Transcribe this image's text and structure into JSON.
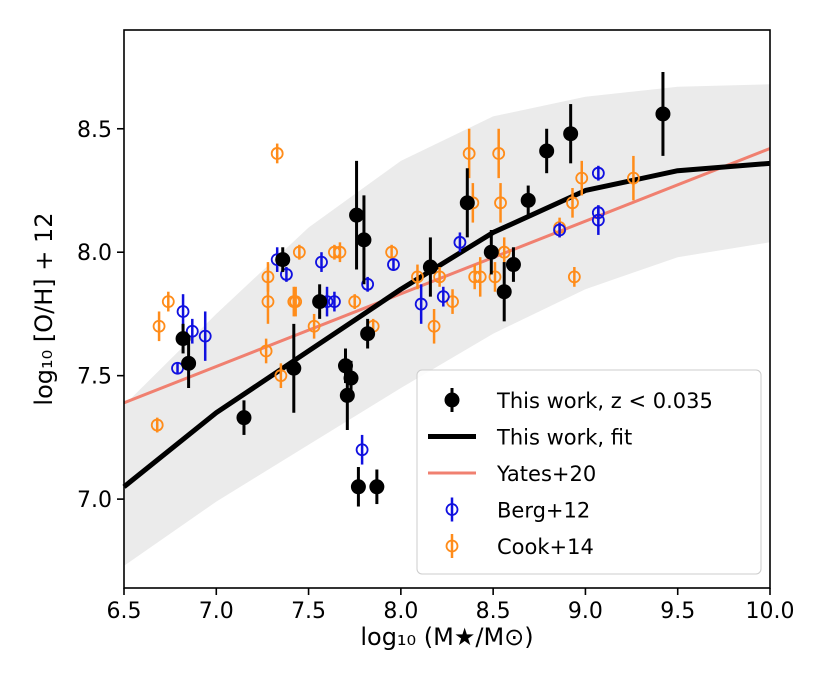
{
  "chart_data": {
    "type": "scatter",
    "title": "",
    "xlabel": "log₁₀ (M★/M⊙)",
    "ylabel": "log₁₀ [O/H] + 12",
    "xlim": [
      6.5,
      10.0
    ],
    "ylim": [
      6.64,
      8.9
    ],
    "xticks": [
      6.5,
      7.0,
      7.5,
      8.0,
      8.5,
      9.0,
      9.5,
      10.0
    ],
    "xtick_labels": [
      "6.5",
      "7.0",
      "7.5",
      "8.0",
      "8.5",
      "9.0",
      "9.5",
      "10.0"
    ],
    "yticks": [
      7.0,
      7.5,
      8.0,
      8.5
    ],
    "ytick_labels": [
      "7.0",
      "7.5",
      "8.0",
      "8.5"
    ],
    "legend_position": "lower-right",
    "colors": {
      "this_work": "#000000",
      "fit": "#000000",
      "yates": "#f08070",
      "berg": "#1010e0",
      "cook": "#ff8c1a",
      "band": "#ebebeb"
    },
    "legend": [
      {
        "key": "this_work",
        "label": "This work, z < 0.035",
        "style": "point-errorbar"
      },
      {
        "key": "fit",
        "label": "This work, fit",
        "style": "line-thick"
      },
      {
        "key": "yates",
        "label": "Yates+20",
        "style": "line"
      },
      {
        "key": "berg",
        "label": "Berg+12",
        "style": "open-errorbar"
      },
      {
        "key": "cook",
        "label": "Cook+14",
        "style": "open-errorbar"
      }
    ],
    "fit_curve": {
      "x": [
        6.5,
        7.0,
        7.5,
        8.0,
        8.5,
        9.0,
        9.5,
        10.0
      ],
      "y": [
        7.05,
        7.35,
        7.6,
        7.85,
        8.08,
        8.25,
        8.33,
        8.36
      ]
    },
    "fit_band": {
      "x": [
        6.5,
        7.0,
        7.5,
        8.0,
        8.5,
        9.0,
        9.5,
        10.0
      ],
      "upper": [
        7.38,
        7.75,
        8.1,
        8.37,
        8.55,
        8.63,
        8.67,
        8.68
      ],
      "lower": [
        6.73,
        6.99,
        7.22,
        7.45,
        7.67,
        7.85,
        7.98,
        8.04
      ]
    },
    "yates_line": {
      "x": [
        6.5,
        10.0
      ],
      "y": [
        7.39,
        8.42
      ]
    },
    "this_work": [
      {
        "x": 6.82,
        "y": 7.65,
        "err": 0.06
      },
      {
        "x": 6.85,
        "y": 7.55,
        "err": 0.1
      },
      {
        "x": 7.15,
        "y": 7.33,
        "err": 0.07
      },
      {
        "x": 7.36,
        "y": 7.97,
        "err": 0.05
      },
      {
        "x": 7.42,
        "y": 7.53,
        "err": 0.18
      },
      {
        "x": 7.56,
        "y": 7.8,
        "err": 0.07
      },
      {
        "x": 7.7,
        "y": 7.54,
        "err": 0.07
      },
      {
        "x": 7.71,
        "y": 7.42,
        "err": 0.14
      },
      {
        "x": 7.73,
        "y": 7.49,
        "err": 0.07
      },
      {
        "x": 7.76,
        "y": 8.15,
        "err": 0.22
      },
      {
        "x": 7.77,
        "y": 7.05,
        "err": 0.08
      },
      {
        "x": 7.8,
        "y": 8.05,
        "err": 0.18
      },
      {
        "x": 7.82,
        "y": 7.67,
        "err": 0.06
      },
      {
        "x": 7.87,
        "y": 7.05,
        "err": 0.07
      },
      {
        "x": 8.16,
        "y": 7.94,
        "err": 0.12
      },
      {
        "x": 8.36,
        "y": 8.2,
        "err": 0.14
      },
      {
        "x": 8.49,
        "y": 8.0,
        "err": 0.09
      },
      {
        "x": 8.56,
        "y": 7.84,
        "err": 0.12
      },
      {
        "x": 8.61,
        "y": 7.95,
        "err": 0.07
      },
      {
        "x": 8.69,
        "y": 8.21,
        "err": 0.06
      },
      {
        "x": 8.79,
        "y": 8.41,
        "err": 0.09
      },
      {
        "x": 8.92,
        "y": 8.48,
        "err": 0.12
      },
      {
        "x": 9.42,
        "y": 8.56,
        "err": 0.17
      }
    ],
    "berg12": [
      {
        "x": 6.79,
        "y": 7.53,
        "err": 0.02
      },
      {
        "x": 6.82,
        "y": 7.76,
        "err": 0.07
      },
      {
        "x": 6.87,
        "y": 7.68,
        "err": 0.05
      },
      {
        "x": 6.94,
        "y": 7.66,
        "err": 0.1
      },
      {
        "x": 7.33,
        "y": 7.97,
        "err": 0.05
      },
      {
        "x": 7.38,
        "y": 7.91,
        "err": 0.03
      },
      {
        "x": 7.57,
        "y": 7.96,
        "err": 0.04
      },
      {
        "x": 7.6,
        "y": 7.8,
        "err": 0.06
      },
      {
        "x": 7.64,
        "y": 7.8,
        "err": 0.04
      },
      {
        "x": 7.79,
        "y": 7.2,
        "err": 0.06
      },
      {
        "x": 7.82,
        "y": 7.87,
        "err": 0.03
      },
      {
        "x": 7.96,
        "y": 7.95,
        "err": 0.02
      },
      {
        "x": 8.11,
        "y": 7.79,
        "err": 0.08
      },
      {
        "x": 8.23,
        "y": 7.82,
        "err": 0.04
      },
      {
        "x": 8.32,
        "y": 8.04,
        "err": 0.04
      },
      {
        "x": 8.86,
        "y": 8.09,
        "err": 0.03
      },
      {
        "x": 9.07,
        "y": 8.13,
        "err": 0.06
      },
      {
        "x": 9.07,
        "y": 8.16,
        "err": 0.03
      },
      {
        "x": 9.07,
        "y": 8.32,
        "err": 0.03
      }
    ],
    "cook14": [
      {
        "x": 6.68,
        "y": 7.3,
        "err": 0.03
      },
      {
        "x": 6.69,
        "y": 7.7,
        "err": 0.06
      },
      {
        "x": 6.74,
        "y": 7.8,
        "err": 0.04
      },
      {
        "x": 7.27,
        "y": 7.6,
        "err": 0.05
      },
      {
        "x": 7.28,
        "y": 7.9,
        "err": 0.06
      },
      {
        "x": 7.28,
        "y": 7.8,
        "err": 0.09
      },
      {
        "x": 7.33,
        "y": 8.4,
        "err": 0.04
      },
      {
        "x": 7.35,
        "y": 7.5,
        "err": 0.05
      },
      {
        "x": 7.42,
        "y": 7.8,
        "err": 0.06
      },
      {
        "x": 7.43,
        "y": 7.8,
        "err": 0.06
      },
      {
        "x": 7.45,
        "y": 8.0,
        "err": 0.03
      },
      {
        "x": 7.53,
        "y": 7.7,
        "err": 0.05
      },
      {
        "x": 7.64,
        "y": 8.0,
        "err": 0.03
      },
      {
        "x": 7.67,
        "y": 8.0,
        "err": 0.04
      },
      {
        "x": 7.75,
        "y": 7.8,
        "err": 0.03
      },
      {
        "x": 7.85,
        "y": 7.7,
        "err": 0.03
      },
      {
        "x": 7.95,
        "y": 8.0,
        "err": 0.03
      },
      {
        "x": 8.09,
        "y": 7.9,
        "err": 0.05
      },
      {
        "x": 8.18,
        "y": 7.7,
        "err": 0.07
      },
      {
        "x": 8.21,
        "y": 7.9,
        "err": 0.04
      },
      {
        "x": 8.28,
        "y": 7.8,
        "err": 0.05
      },
      {
        "x": 8.37,
        "y": 8.4,
        "err": 0.1
      },
      {
        "x": 8.39,
        "y": 8.2,
        "err": 0.08
      },
      {
        "x": 8.4,
        "y": 7.9,
        "err": 0.05
      },
      {
        "x": 8.43,
        "y": 7.9,
        "err": 0.08
      },
      {
        "x": 8.51,
        "y": 7.9,
        "err": 0.06
      },
      {
        "x": 8.53,
        "y": 8.4,
        "err": 0.1
      },
      {
        "x": 8.54,
        "y": 8.2,
        "err": 0.08
      },
      {
        "x": 8.56,
        "y": 8.0,
        "err": 0.06
      },
      {
        "x": 8.86,
        "y": 8.1,
        "err": 0.04
      },
      {
        "x": 8.93,
        "y": 8.2,
        "err": 0.06
      },
      {
        "x": 8.94,
        "y": 7.9,
        "err": 0.04
      },
      {
        "x": 8.98,
        "y": 8.3,
        "err": 0.07
      },
      {
        "x": 9.26,
        "y": 8.3,
        "err": 0.09
      }
    ]
  }
}
